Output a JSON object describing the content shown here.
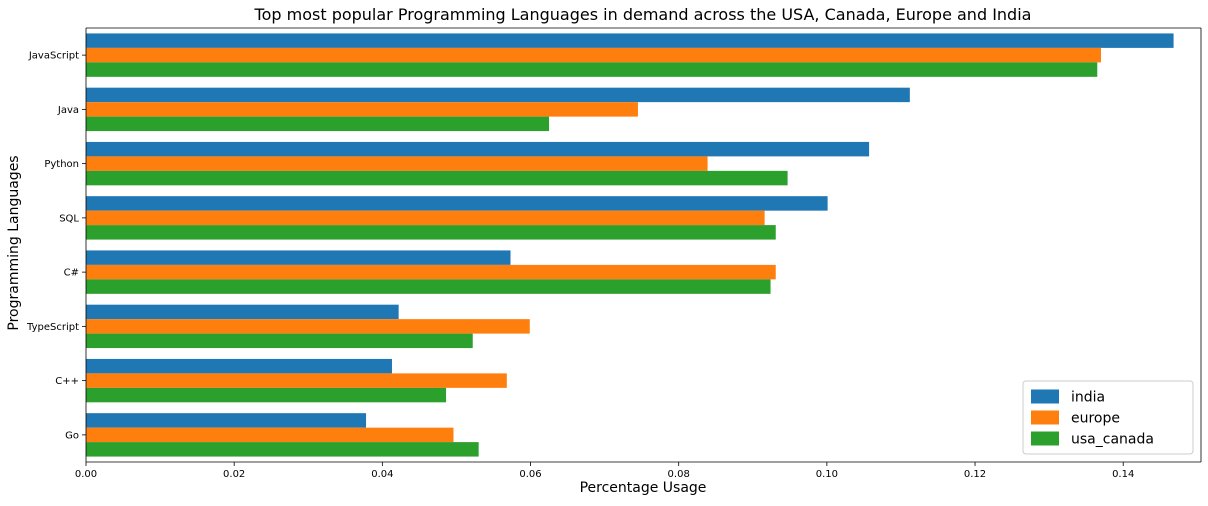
{
  "chart_data": {
    "type": "bar",
    "orientation": "horizontal",
    "title": "Top most popular Programming Languages in demand across the USA, Canada, Europe and India",
    "xlabel": "Percentage Usage",
    "ylabel": "Programming Languages",
    "xlim": [
      0,
      0.1505
    ],
    "xticks": [
      "0.00",
      "0.02",
      "0.04",
      "0.06",
      "0.08",
      "0.10",
      "0.12",
      "0.14"
    ],
    "grid": false,
    "legend_position": "bottom-right",
    "categories": [
      "JavaScript",
      "Java",
      "Python",
      "SQL",
      "C#",
      "TypeScript",
      "C++",
      "Go"
    ],
    "series": [
      {
        "name": "india",
        "color": "#1f77b4",
        "values": [
          0.1468,
          0.1112,
          0.1057,
          0.1001,
          0.0573,
          0.0422,
          0.0413,
          0.0378
        ]
      },
      {
        "name": "europe",
        "color": "#ff7f0e",
        "values": [
          0.137,
          0.0745,
          0.0839,
          0.0916,
          0.0931,
          0.0599,
          0.0568,
          0.0496
        ]
      },
      {
        "name": "usa_canada",
        "color": "#2ca02c",
        "values": [
          0.1365,
          0.0625,
          0.0947,
          0.0931,
          0.0924,
          0.0522,
          0.0486,
          0.053
        ]
      }
    ]
  }
}
